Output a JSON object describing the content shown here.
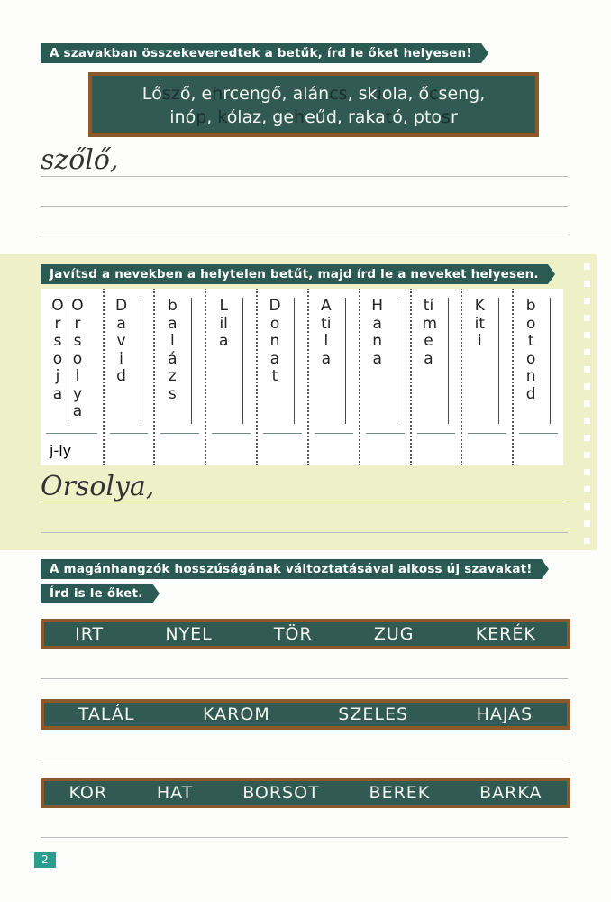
{
  "task1": {
    "instruction": "A szavakban összekeveredtek a betűk, írd le őket helyesen!",
    "line1": [
      {
        "t": "Lő",
        "d": 0
      },
      {
        "t": "sz",
        "d": 1
      },
      {
        "t": "ő, e",
        "d": 0
      },
      {
        "t": "h",
        "d": 1
      },
      {
        "t": "rcengő, alán",
        "d": 0
      },
      {
        "t": "cs",
        "d": 1
      },
      {
        "t": ", sk",
        "d": 0
      },
      {
        "t": "i",
        "d": 1
      },
      {
        "t": "ola, ő",
        "d": 0
      },
      {
        "t": "c",
        "d": 1
      },
      {
        "t": "seng,",
        "d": 0
      }
    ],
    "line2": [
      {
        "t": "inó",
        "d": 0
      },
      {
        "t": "p",
        "d": 1
      },
      {
        "t": ", ",
        "d": 0
      },
      {
        "t": "k",
        "d": 1
      },
      {
        "t": "ólaz, ge",
        "d": 0
      },
      {
        "t": "h",
        "d": 1
      },
      {
        "t": "eűd, raka",
        "d": 0
      },
      {
        "t": "t",
        "d": 1
      },
      {
        "t": "ó, pto",
        "d": 0
      },
      {
        "t": "s",
        "d": 1
      },
      {
        "t": "r",
        "d": 0
      }
    ],
    "example": "szőlő,"
  },
  "task2": {
    "instruction": "Javítsd a nevekben a helytelen betűt, majd írd le a neveket helyesen.",
    "columns": [
      {
        "word": "Orsoja",
        "fixed": "Orsolya",
        "note": "j-ly"
      },
      {
        "word": "David"
      },
      {
        "word": "balázs"
      },
      {
        "word": "Lila"
      },
      {
        "word": "Donat"
      },
      {
        "word": "Atila"
      },
      {
        "word": "Hana"
      },
      {
        "word": "tímea"
      },
      {
        "word": "Kiti"
      },
      {
        "word": "botond"
      }
    ],
    "example": "Orsolya,"
  },
  "task3": {
    "instruction": "A magánhangzók hosszúságának változtatásával alkoss új szavakat!",
    "instruction2": "Írd is le őket.",
    "rows": [
      [
        "IRT",
        "NYEL",
        "TÖR",
        "ZUG",
        "KERÉK"
      ],
      [
        "TALÁL",
        "KAROM",
        "SZELES",
        "HAJAS"
      ],
      [
        "KOR",
        "HAT",
        "BORSOT",
        "BEREK",
        "BARKA"
      ]
    ]
  },
  "page_number": "2"
}
